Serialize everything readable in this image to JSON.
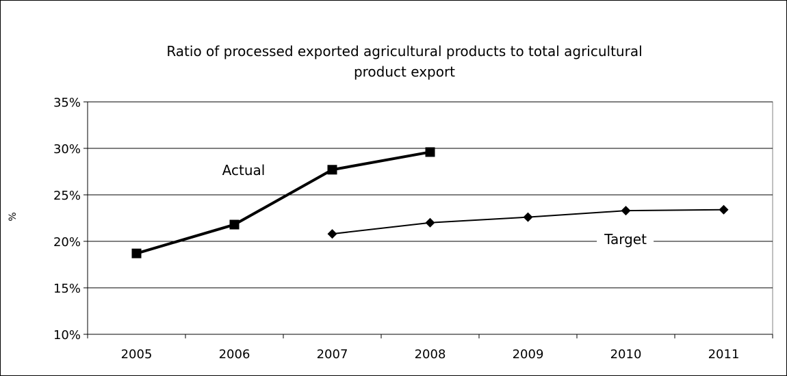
{
  "chart_data": {
    "type": "line",
    "title_lines": [
      "Ratio of processed exported agricultural products to total agricultural",
      "product export"
    ],
    "xlabel": "",
    "ylabel": "%",
    "categories": [
      "2005",
      "2006",
      "2007",
      "2008",
      "2009",
      "2010",
      "2011"
    ],
    "y_ticks": [
      {
        "value": 10,
        "label": "10%"
      },
      {
        "value": 15,
        "label": "15%"
      },
      {
        "value": 20,
        "label": "20%"
      },
      {
        "value": 25,
        "label": "25%"
      },
      {
        "value": 30,
        "label": "30%"
      },
      {
        "value": 35,
        "label": "35%"
      }
    ],
    "ylim": [
      10,
      35
    ],
    "grid": "horizontal",
    "legend": "none",
    "series": [
      {
        "name": "Actual",
        "marker": "square",
        "color": "#000000",
        "x": [
          "2005",
          "2006",
          "2007",
          "2008"
        ],
        "values": [
          18.7,
          21.8,
          27.7,
          29.6
        ]
      },
      {
        "name": "Target",
        "marker": "diamond",
        "color": "#000000",
        "x": [
          "2007",
          "2008",
          "2009",
          "2010",
          "2011"
        ],
        "values": [
          20.8,
          22.0,
          22.6,
          23.3,
          23.4
        ]
      }
    ]
  }
}
